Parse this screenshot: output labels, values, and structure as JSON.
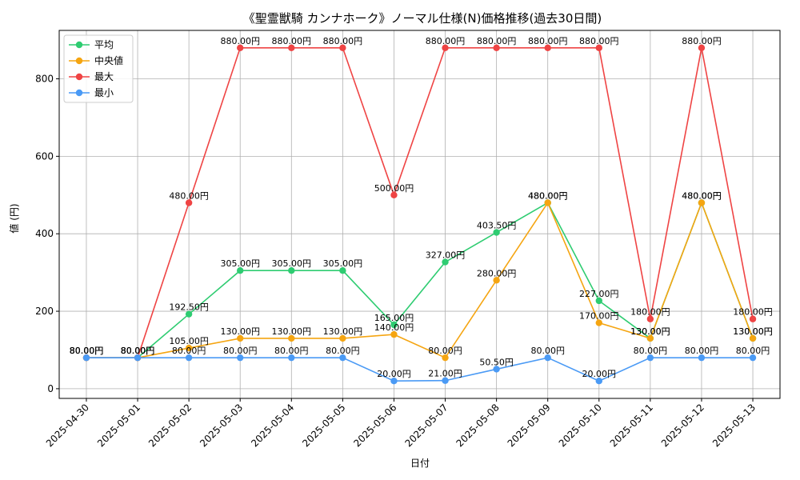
{
  "chart_data": {
    "type": "line",
    "title": "《聖霊獣騎 カンナホーク》ノーマル仕様(N)価格推移(過去30日間)",
    "xlabel": "日付",
    "ylabel": "値 (円)",
    "categories": [
      "2025-04-30",
      "2025-05-01",
      "2025-05-02",
      "2025-05-03",
      "2025-05-04",
      "2025-05-05",
      "2025-05-06",
      "2025-05-07",
      "2025-05-08",
      "2025-05-09",
      "2025-05-10",
      "2025-05-11",
      "2025-05-12",
      "2025-05-13"
    ],
    "ylim": [
      -25,
      925
    ],
    "yticks": [
      0,
      200,
      400,
      600,
      800
    ],
    "grid": true,
    "legend": "top-left",
    "series": [
      {
        "name": "平均",
        "color": "#2ecc71",
        "values": [
          80,
          80,
          192.5,
          305,
          305,
          305,
          165,
          327,
          403.5,
          480,
          227,
          130,
          480,
          130
        ]
      },
      {
        "name": "中央値",
        "color": "#f5a511",
        "values": [
          80,
          80,
          105,
          130,
          130,
          130,
          140,
          80,
          280,
          480,
          170,
          130,
          480,
          130
        ]
      },
      {
        "name": "最大",
        "color": "#ef4444",
        "values": [
          80,
          80,
          480,
          880,
          880,
          880,
          500,
          880,
          880,
          880,
          880,
          180,
          880,
          180
        ]
      },
      {
        "name": "最小",
        "color": "#4a9af5",
        "values": [
          80,
          80,
          80,
          80,
          80,
          80,
          20,
          21,
          50.5,
          80,
          20,
          80,
          80,
          80
        ]
      }
    ],
    "labels": {
      "平均": [
        "80.00円",
        "80.00円",
        "192.50円",
        "305.00円",
        "305.00円",
        "305.00円",
        "165.00円",
        "327.00円",
        "403.50円",
        "480.00円",
        "227.00円",
        "130.00円",
        "480.00円",
        "130.00円"
      ],
      "中央値": [
        "80.00円",
        "80.00円",
        "105.00円",
        "130.00円",
        "130.00円",
        "130.00円",
        "140.00円",
        "80.00円",
        "280.00円",
        "480.00円",
        "170.00円",
        "130.00円",
        "480.00円",
        "130.00円"
      ],
      "最大": [
        "80.00円",
        "80.00円",
        "480.00円",
        "880.00円",
        "880.00円",
        "880.00円",
        "500.00円",
        "880.00円",
        "880.00円",
        "880.00円",
        "880.00円",
        "180.00円",
        "880.00円",
        "180.00円"
      ],
      "最小": [
        "80.00円",
        "80.00円",
        "80.00円",
        "80.00円",
        "80.00円",
        "80.00円",
        "20.00円",
        "21.00円",
        "50.50円",
        "80.00円",
        "20.00円",
        "80.00円",
        "80.00円",
        "80.00円"
      ]
    }
  }
}
